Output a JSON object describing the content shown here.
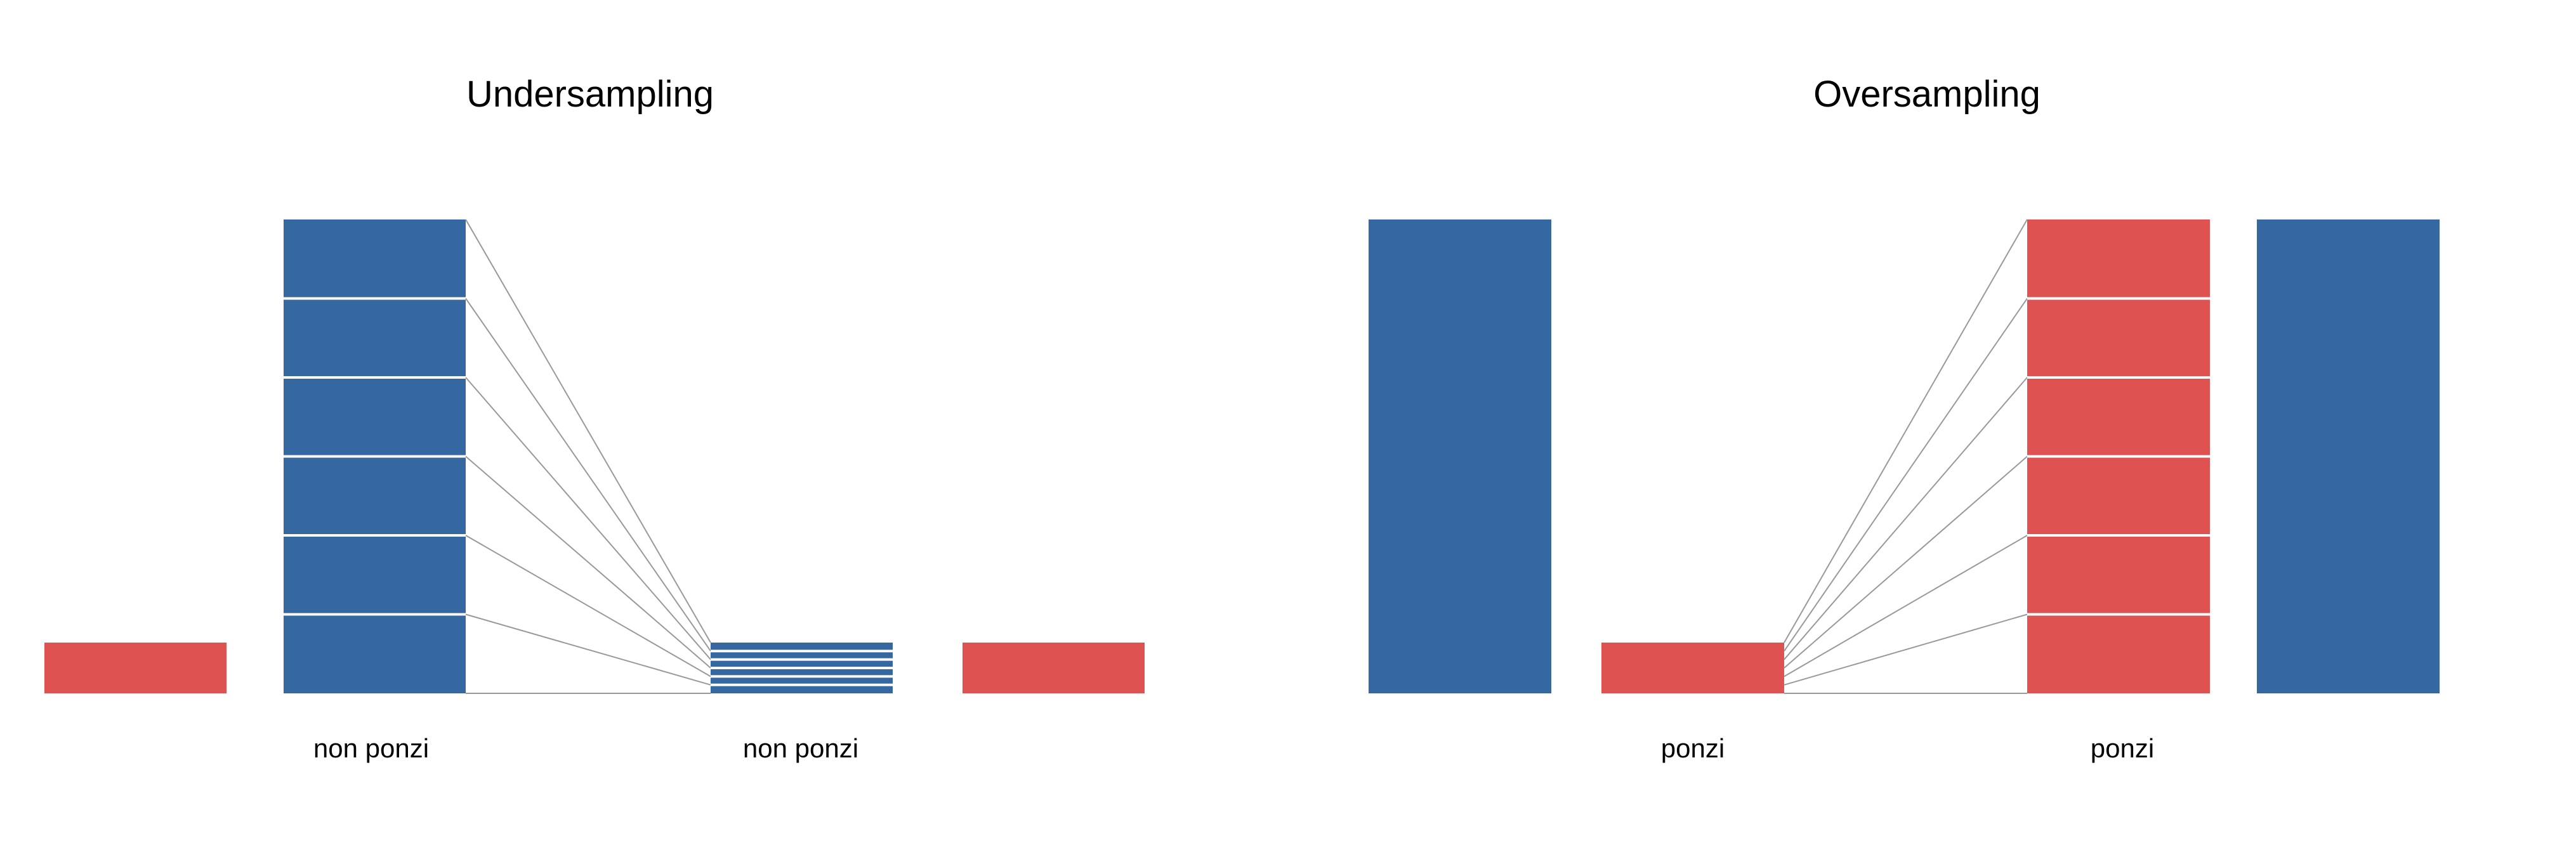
{
  "colors": {
    "majority": "#3567a0",
    "minority": "#de5352",
    "connector": "#999999",
    "divider": "#ffffff"
  },
  "undersampling": {
    "title": "Undersampling",
    "source_label": "non ponzi",
    "result_label": "non ponzi",
    "source_segments": 6,
    "result_segments": 6
  },
  "oversampling": {
    "title": "Oversampling",
    "source_label": "ponzi",
    "result_label": "ponzi",
    "source_segments": 1,
    "result_segments": 6
  }
}
